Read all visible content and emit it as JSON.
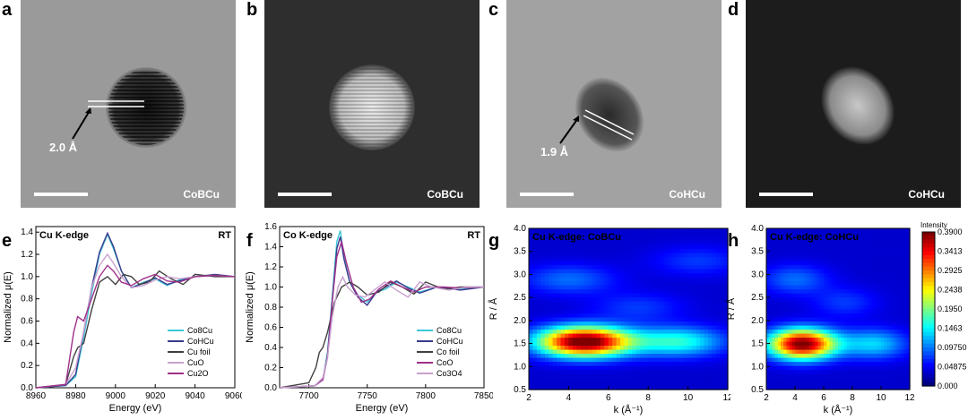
{
  "panels": {
    "a": {
      "letter": "a",
      "sample": "CoBCu",
      "d_spacing": "2.0 Å"
    },
    "b": {
      "letter": "b",
      "sample": "CoBCu"
    },
    "c": {
      "letter": "c",
      "sample": "CoHCu",
      "d_spacing": "1.9 Å"
    },
    "d": {
      "letter": "d",
      "sample": "CoHCu"
    },
    "e": {
      "letter": "e"
    },
    "f": {
      "letter": "f"
    },
    "g": {
      "letter": "g"
    },
    "h": {
      "letter": "h"
    }
  },
  "chart_data": [
    {
      "id": "e",
      "type": "line",
      "title": "Cu K-edge",
      "annotation": "RT",
      "xlabel": "Energy (eV)",
      "ylabel": "Normalized μ(E)",
      "xlim": [
        8960,
        9060
      ],
      "ylim": [
        0.0,
        1.45
      ],
      "xticks": [
        "8960",
        "8980",
        "9000",
        "9020",
        "9040",
        "9060"
      ],
      "yticks": [
        "0.0",
        "0.2",
        "0.4",
        "0.6",
        "0.8",
        "1.0",
        "1.2",
        "1.4"
      ],
      "legend_position": "bottom-right",
      "series": [
        {
          "name": "Co8Cu",
          "color": "#3cc8d8",
          "x": [
            8960,
            8975,
            8980,
            8984,
            8988,
            8992,
            8996,
            8999,
            9003,
            9008,
            9014,
            9020,
            9026,
            9032,
            9040,
            9050,
            9060
          ],
          "y": [
            0.0,
            0.02,
            0.1,
            0.45,
            0.85,
            1.2,
            1.38,
            1.25,
            1.05,
            0.9,
            0.95,
            0.98,
            0.92,
            0.97,
            1.0,
            1.01,
            1.0
          ]
        },
        {
          "name": "CoHCu",
          "color": "#3a3a8c",
          "x": [
            8960,
            8975,
            8980,
            8984,
            8988,
            8992,
            8996,
            8999,
            9003,
            9008,
            9014,
            9020,
            9026,
            9032,
            9040,
            9050,
            9060
          ],
          "y": [
            0.0,
            0.02,
            0.12,
            0.5,
            0.9,
            1.22,
            1.39,
            1.27,
            1.05,
            0.9,
            0.94,
            0.99,
            0.93,
            0.96,
            1.0,
            1.02,
            1.0
          ]
        },
        {
          "name": "Cu foil",
          "color": "#404040",
          "x": [
            8960,
            8975,
            8979,
            8981,
            8984,
            8988,
            8992,
            8996,
            9000,
            9004,
            9008,
            9012,
            9017,
            9022,
            9028,
            9034,
            9040,
            9050,
            9060
          ],
          "y": [
            0.0,
            0.03,
            0.28,
            0.36,
            0.4,
            0.7,
            0.95,
            1.0,
            0.93,
            1.02,
            1.0,
            0.93,
            0.95,
            1.05,
            0.98,
            0.93,
            1.02,
            1.0,
            1.0
          ]
        },
        {
          "name": "CuO",
          "color": "#c9a0d0",
          "x": [
            8960,
            8975,
            8980,
            8984,
            8988,
            8992,
            8996,
            8999,
            9003,
            9008,
            9014,
            9020,
            9026,
            9032,
            9040,
            9050,
            9060
          ],
          "y": [
            0.0,
            0.03,
            0.18,
            0.5,
            0.9,
            1.1,
            1.2,
            1.12,
            1.0,
            0.9,
            0.92,
            0.97,
            1.0,
            0.98,
            1.0,
            1.01,
            1.0
          ]
        },
        {
          "name": "Cu2O",
          "color": "#a0308a",
          "x": [
            8960,
            8975,
            8979,
            8981,
            8984,
            8988,
            8992,
            8996,
            8999,
            9003,
            9008,
            9014,
            9020,
            9026,
            9032,
            9040,
            9050,
            9060
          ],
          "y": [
            0.0,
            0.03,
            0.5,
            0.64,
            0.6,
            0.8,
            1.0,
            1.1,
            1.05,
            0.95,
            0.92,
            0.98,
            1.02,
            0.96,
            0.95,
            1.0,
            1.01,
            1.0
          ]
        }
      ]
    },
    {
      "id": "f",
      "type": "line",
      "title": "Co K-edge",
      "annotation": "RT",
      "xlabel": "Energy (eV)",
      "ylabel": "Normalized μ(E)",
      "xlim": [
        7675,
        7850
      ],
      "ylim": [
        0.0,
        1.6
      ],
      "xticks": [
        "7700",
        "7750",
        "7800",
        "7850"
      ],
      "yticks": [
        "0.0",
        "0.2",
        "0.4",
        "0.6",
        "0.8",
        "1.0",
        "1.2",
        "1.4",
        "1.6"
      ],
      "legend_position": "bottom-right",
      "series": [
        {
          "name": "Co8Cu",
          "color": "#3cc8d8",
          "x": [
            7675,
            7705,
            7712,
            7716,
            7720,
            7724,
            7727,
            7730,
            7735,
            7742,
            7750,
            7758,
            7766,
            7775,
            7785,
            7795,
            7810,
            7830,
            7850
          ],
          "y": [
            0.0,
            0.02,
            0.08,
            0.35,
            0.9,
            1.45,
            1.56,
            1.3,
            1.05,
            0.92,
            0.85,
            0.95,
            0.98,
            1.05,
            1.0,
            0.95,
            1.0,
            0.98,
            1.0
          ]
        },
        {
          "name": "CoHCu",
          "color": "#3a3a8c",
          "x": [
            7675,
            7705,
            7712,
            7716,
            7720,
            7724,
            7727,
            7730,
            7735,
            7742,
            7750,
            7758,
            7766,
            7775,
            7785,
            7795,
            7810,
            7830,
            7850
          ],
          "y": [
            0.0,
            0.02,
            0.08,
            0.33,
            0.85,
            1.38,
            1.5,
            1.28,
            1.05,
            0.9,
            0.82,
            0.95,
            1.0,
            1.06,
            0.99,
            0.94,
            1.0,
            0.97,
            1.0
          ]
        },
        {
          "name": "Co foil",
          "color": "#404040",
          "x": [
            7675,
            7700,
            7706,
            7709,
            7712,
            7716,
            7722,
            7728,
            7735,
            7742,
            7750,
            7760,
            7770,
            7780,
            7790,
            7800,
            7815,
            7830,
            7850
          ],
          "y": [
            0.0,
            0.05,
            0.2,
            0.35,
            0.4,
            0.55,
            0.85,
            1.0,
            1.05,
            1.0,
            0.92,
            0.95,
            1.05,
            1.0,
            0.93,
            1.05,
            0.98,
            1.0,
            1.0
          ]
        },
        {
          "name": "CoO",
          "color": "#a0308a",
          "x": [
            7675,
            7705,
            7712,
            7716,
            7720,
            7724,
            7728,
            7732,
            7738,
            7745,
            7752,
            7760,
            7770,
            7780,
            7790,
            7800,
            7815,
            7830,
            7850
          ],
          "y": [
            0.0,
            0.02,
            0.08,
            0.3,
            0.85,
            1.3,
            1.45,
            1.25,
            1.0,
            0.85,
            0.88,
            0.98,
            1.06,
            1.0,
            0.95,
            1.0,
            1.0,
            0.99,
            1.0
          ]
        },
        {
          "name": "Co3O4",
          "color": "#c9a0d0",
          "x": [
            7675,
            7705,
            7712,
            7716,
            7720,
            7725,
            7729,
            7733,
            7740,
            7748,
            7756,
            7765,
            7775,
            7785,
            7795,
            7805,
            7820,
            7835,
            7850
          ],
          "y": [
            0.0,
            0.02,
            0.1,
            0.3,
            0.7,
            1.0,
            1.1,
            1.0,
            0.92,
            0.9,
            0.97,
            1.05,
            0.97,
            0.9,
            1.05,
            1.0,
            0.97,
            1.0,
            1.0
          ]
        }
      ]
    },
    {
      "id": "g",
      "type": "heatmap",
      "title": "Cu K-edge: CoBCu",
      "xlabel": "k (Å⁻¹)",
      "ylabel": "R / Å",
      "xlim": [
        2,
        12
      ],
      "ylim": [
        0.5,
        4.0
      ],
      "xticks": [
        "2",
        "4",
        "6",
        "8",
        "10",
        "12"
      ],
      "yticks": [
        "0.5",
        "1.0",
        "1.5",
        "2.0",
        "2.5",
        "3.0",
        "3.5",
        "4.0"
      ],
      "peaks": [
        {
          "k": 4.8,
          "R": 1.55,
          "intensity": 0.39
        },
        {
          "k": 9.5,
          "R": 1.55,
          "intensity": 0.13
        },
        {
          "k": 4.0,
          "R": 2.9,
          "intensity": 0.06
        },
        {
          "k": 7.5,
          "R": 2.3,
          "intensity": 0.04
        },
        {
          "k": 10.5,
          "R": 3.3,
          "intensity": 0.04
        }
      ]
    },
    {
      "id": "h",
      "type": "heatmap",
      "title": "Cu K-edge: CoHCu",
      "xlabel": "k (Å⁻¹)",
      "ylabel": "R / Å",
      "xlim": [
        2,
        12
      ],
      "ylim": [
        0.5,
        4.0
      ],
      "xticks": [
        "2",
        "4",
        "6",
        "8",
        "10",
        "12"
      ],
      "yticks": [
        "0.5",
        "1.0",
        "1.5",
        "2.0",
        "2.5",
        "3.0",
        "3.5",
        "4.0"
      ],
      "colorbar_title": "Intensity",
      "colorbar_ticks": [
        "0.3900",
        "0.3413",
        "0.2925",
        "0.2438",
        "0.1950",
        "0.1463",
        "0.09750",
        "0.04875",
        "0.000"
      ],
      "peaks": [
        {
          "k": 4.5,
          "R": 1.5,
          "intensity": 0.37
        },
        {
          "k": 9.5,
          "R": 1.5,
          "intensity": 0.1
        },
        {
          "k": 4.0,
          "R": 2.9,
          "intensity": 0.06
        },
        {
          "k": 7.5,
          "R": 2.4,
          "intensity": 0.04
        }
      ]
    }
  ]
}
